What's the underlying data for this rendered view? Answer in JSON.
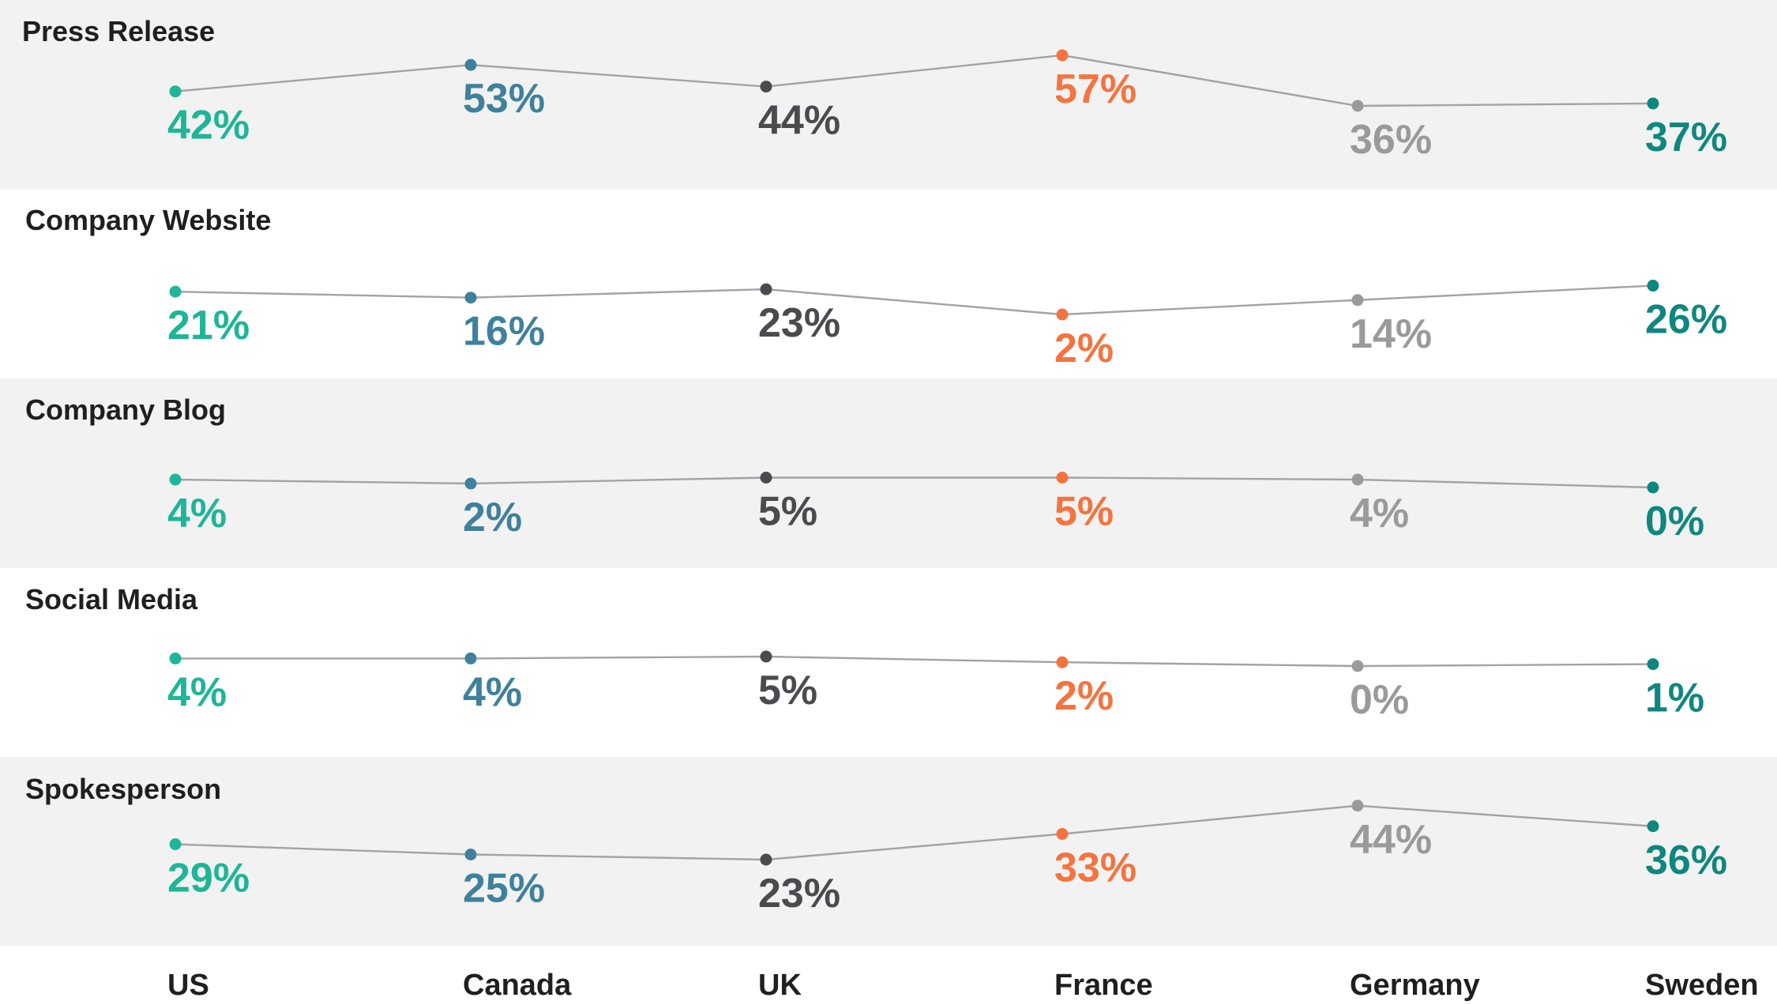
{
  "chart_data": {
    "type": "line",
    "categories": [
      "US",
      "Canada",
      "UK",
      "France",
      "Germany",
      "Sweden"
    ],
    "country_colors": [
      "#1fb597",
      "#3f819c",
      "#4a4a4f",
      "#f5733f",
      "#9a9a9a",
      "#0f877e"
    ],
    "series": [
      {
        "name": "Press Release",
        "values": [
          42,
          53,
          44,
          57,
          36,
          37
        ],
        "labels": [
          "42%",
          "53%",
          "44%",
          "57%",
          "36%",
          "37%"
        ],
        "shaded": true
      },
      {
        "name": "Company Website",
        "values": [
          21,
          16,
          23,
          2,
          14,
          26
        ],
        "labels": [
          "21%",
          "16%",
          "23%",
          "2%",
          "14%",
          "26%"
        ],
        "shaded": false
      },
      {
        "name": "Company Blog",
        "values": [
          4,
          2,
          5,
          5,
          4,
          0
        ],
        "labels": [
          "4%",
          "2%",
          "5%",
          "5%",
          "4%",
          "0%"
        ],
        "shaded": true
      },
      {
        "name": "Social Media",
        "values": [
          4,
          4,
          5,
          2,
          0,
          1
        ],
        "labels": [
          "4%",
          "4%",
          "5%",
          "2%",
          "0%",
          "1%"
        ],
        "shaded": false
      },
      {
        "name": "Spokesperson",
        "values": [
          29,
          25,
          23,
          33,
          44,
          36
        ],
        "labels": [
          "29%",
          "25%",
          "23%",
          "33%",
          "44%",
          "36%"
        ],
        "shaded": true
      }
    ],
    "band_color": "#f2f2f2",
    "line_color": "#a3a3a3",
    "grid": false,
    "legend": "none"
  }
}
